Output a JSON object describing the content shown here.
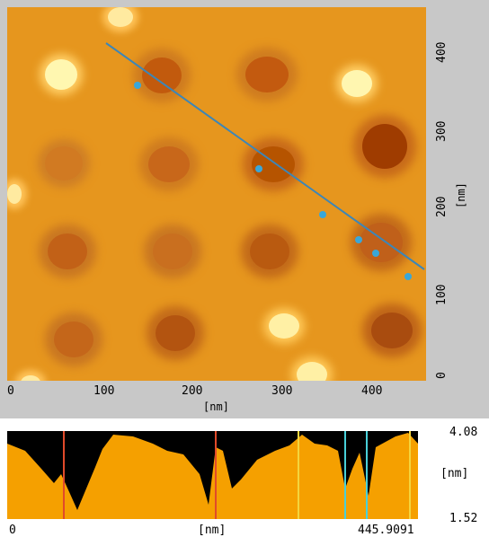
{
  "image": {
    "x_ticks": [
      "0",
      "100",
      "200",
      "300",
      "400"
    ],
    "x_unit": "[nm]",
    "y_ticks": [
      "0",
      "100",
      "200",
      "300",
      "400"
    ],
    "y_unit": "[nm]"
  },
  "profile": {
    "y_max_label": "4.08",
    "y_min_label": "1.52",
    "y_unit": "[nm]",
    "x_start_label": "0",
    "x_end_label": "445.9091",
    "x_unit": "[nm]",
    "cursors": [
      {
        "color": "#e14a2a"
      },
      {
        "color": "#e14a2a"
      },
      {
        "color": "#f4d53d"
      },
      {
        "color": "#48d0d9"
      },
      {
        "color": "#48d0d9"
      },
      {
        "color": "#f4d53d"
      }
    ]
  },
  "colors": {
    "surface": "#e6961e",
    "profile_fill": "#f5a000",
    "profile_background": "#000000",
    "trace": "#3c86b8"
  }
}
